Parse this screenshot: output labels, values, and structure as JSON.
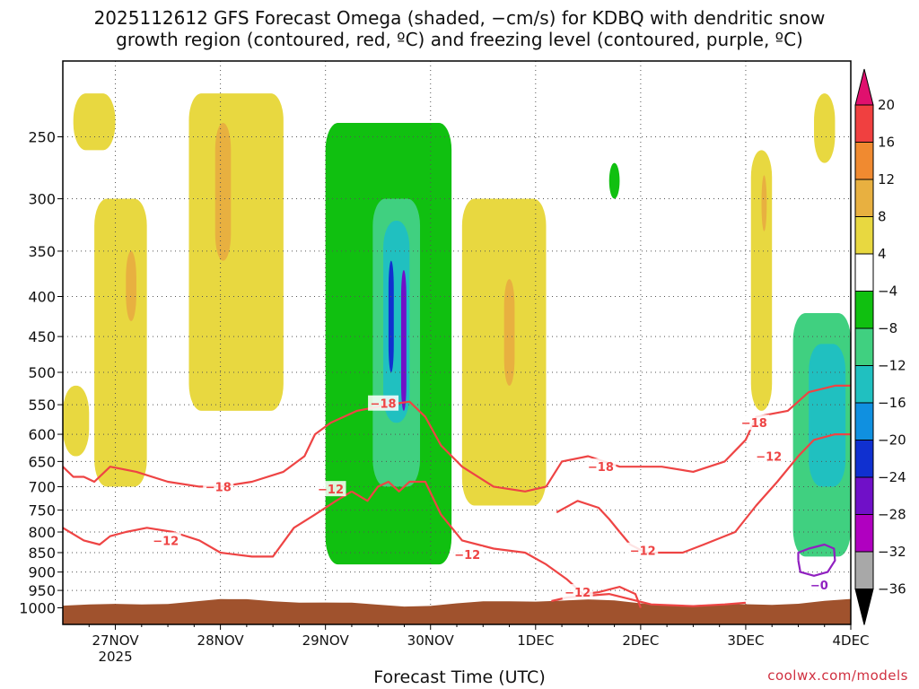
{
  "chart_data": {
    "type": "heatmap",
    "title_line1": "2025112612 GFS Forecast Omega (shaded, −cm/s) for KDBQ with dendritic snow",
    "title_line2": "growth region (contoured, red, ºC) and freezing level (contoured, purple, ºC)",
    "xlabel": "Forecast Time (UTC)",
    "x_ticks": [
      {
        "label": "27NOV",
        "sub": "2025",
        "day": 1
      },
      {
        "label": "28NOV",
        "sub": "",
        "day": 2
      },
      {
        "label": "29NOV",
        "sub": "",
        "day": 3
      },
      {
        "label": "30NOV",
        "sub": "",
        "day": 4
      },
      {
        "label": "1DEC",
        "sub": "",
        "day": 5
      },
      {
        "label": "2DEC",
        "sub": "",
        "day": 6
      },
      {
        "label": "3DEC",
        "sub": "",
        "day": 7
      },
      {
        "label": "4DEC",
        "sub": "",
        "day": 8
      }
    ],
    "x_range_days": [
      0.5,
      8.0
    ],
    "y_axis": "pressure (hPa), log scale, inverted",
    "y_range_hpa": [
      200,
      1050
    ],
    "y_ticks": [
      250,
      300,
      350,
      400,
      450,
      500,
      550,
      600,
      650,
      700,
      750,
      800,
      850,
      900,
      950,
      1000
    ],
    "colorbar": {
      "labels": [
        "20",
        "16",
        "12",
        "8",
        "4",
        "−4",
        "−8",
        "−12",
        "−16",
        "−20",
        "−24",
        "−28",
        "−32",
        "−36"
      ],
      "colors": [
        "#e0106e",
        "#f04040",
        "#f08a30",
        "#e8b040",
        "#e8d840",
        "#ffffff",
        "#10c010",
        "#40d080",
        "#20c0c0",
        "#1090e0",
        "#1030d0",
        "#7010c8",
        "#b000c0",
        "#a8a8a8",
        "#000000"
      ]
    },
    "omega_regions": [
      {
        "name": "lift-27nov",
        "value": 6,
        "day0": 0.5,
        "day1": 0.75,
        "p0": 520,
        "p1": 640
      },
      {
        "name": "lift-27nov-b",
        "value": 6,
        "day0": 0.6,
        "day1": 1.0,
        "p0": 220,
        "p1": 260
      },
      {
        "name": "lift-27nov-c",
        "value": 5,
        "day0": 0.8,
        "day1": 1.3,
        "p0": 300,
        "p1": 700
      },
      {
        "name": "lift-27nov-core",
        "value": 10,
        "day0": 1.1,
        "day1": 1.2,
        "p0": 350,
        "p1": 430
      },
      {
        "name": "lift-28nov",
        "value": 6,
        "day0": 1.7,
        "day1": 2.6,
        "p0": 220,
        "p1": 560
      },
      {
        "name": "lift-28nov-core",
        "value": 11,
        "day0": 1.95,
        "day1": 2.1,
        "p0": 240,
        "p1": 360
      },
      {
        "name": "sink-29nov",
        "value": -7,
        "day0": 3.0,
        "day1": 4.2,
        "p0": 240,
        "p1": 880
      },
      {
        "name": "sink-29nov-b",
        "value": -11,
        "day0": 3.45,
        "day1": 3.9,
        "p0": 300,
        "p1": 700
      },
      {
        "name": "sink-29nov-c",
        "value": -15,
        "day0": 3.55,
        "day1": 3.8,
        "p0": 320,
        "p1": 580
      },
      {
        "name": "sink-29nov-d",
        "value": -22,
        "day0": 3.6,
        "day1": 3.65,
        "p0": 360,
        "p1": 500
      },
      {
        "name": "sink-29nov-e",
        "value": -26,
        "day0": 3.72,
        "day1": 3.77,
        "p0": 370,
        "p1": 560
      },
      {
        "name": "lift-30nov",
        "value": 5,
        "day0": 4.3,
        "day1": 5.1,
        "p0": 300,
        "p1": 740
      },
      {
        "name": "lift-30nov-core",
        "value": 9,
        "day0": 4.7,
        "day1": 4.8,
        "p0": 380,
        "p1": 520
      },
      {
        "name": "sink-1dec",
        "value": -6,
        "day0": 5.7,
        "day1": 5.8,
        "p0": 270,
        "p1": 300
      },
      {
        "name": "lift-3dec",
        "value": 6,
        "day0": 7.05,
        "day1": 7.25,
        "p0": 260,
        "p1": 560
      },
      {
        "name": "lift-3dec-core",
        "value": 11,
        "day0": 7.15,
        "day1": 7.2,
        "p0": 280,
        "p1": 330
      },
      {
        "name": "lift-4dec-top",
        "value": 5,
        "day0": 7.65,
        "day1": 7.85,
        "p0": 220,
        "p1": 270
      },
      {
        "name": "sink-4dec",
        "value": -8,
        "day0": 7.45,
        "day1": 8.0,
        "p0": 420,
        "p1": 860
      },
      {
        "name": "sink-4dec-b",
        "value": -13,
        "day0": 7.6,
        "day1": 7.95,
        "p0": 460,
        "p1": 700
      }
    ],
    "contours": {
      "dgz_minus18_label": "−18",
      "dgz_minus12_label": "−12",
      "freezing_label": "−0",
      "minus18": [
        [
          0.5,
          660
        ],
        [
          0.6,
          680
        ],
        [
          0.7,
          680
        ],
        [
          0.8,
          690
        ],
        [
          0.95,
          660
        ],
        [
          1.2,
          670
        ],
        [
          1.5,
          690
        ],
        [
          1.8,
          700
        ],
        [
          2.0,
          700
        ],
        [
          2.3,
          690
        ],
        [
          2.6,
          670
        ],
        [
          2.8,
          640
        ],
        [
          2.9,
          600
        ],
        [
          3.05,
          580
        ],
        [
          3.3,
          560
        ],
        [
          3.6,
          550
        ],
        [
          3.8,
          545
        ],
        [
          3.95,
          570
        ],
        [
          4.1,
          620
        ],
        [
          4.3,
          660
        ],
        [
          4.6,
          700
        ],
        [
          4.9,
          710
        ],
        [
          5.1,
          700
        ],
        [
          5.25,
          650
        ],
        [
          5.5,
          640
        ],
        [
          5.8,
          660
        ],
        [
          6.2,
          660
        ],
        [
          6.5,
          670
        ],
        [
          6.8,
          650
        ],
        [
          7.0,
          610
        ],
        [
          7.1,
          570
        ],
        [
          7.4,
          560
        ],
        [
          7.6,
          530
        ],
        [
          7.85,
          520
        ],
        [
          8.0,
          520
        ]
      ],
      "minus12_a": [
        [
          0.5,
          790
        ],
        [
          0.7,
          820
        ],
        [
          0.85,
          830
        ],
        [
          0.95,
          810
        ],
        [
          1.1,
          800
        ],
        [
          1.3,
          790
        ],
        [
          1.55,
          800
        ],
        [
          1.8,
          820
        ],
        [
          2.0,
          850
        ],
        [
          2.3,
          860
        ],
        [
          2.5,
          860
        ],
        [
          2.7,
          790
        ],
        [
          2.9,
          760
        ],
        [
          3.1,
          730
        ],
        [
          3.25,
          710
        ]
      ],
      "minus12_b": [
        [
          3.25,
          710
        ],
        [
          3.4,
          730
        ],
        [
          3.5,
          700
        ],
        [
          3.6,
          690
        ],
        [
          3.7,
          710
        ],
        [
          3.8,
          690
        ],
        [
          3.95,
          690
        ],
        [
          4.1,
          760
        ],
        [
          4.3,
          820
        ],
        [
          4.6,
          840
        ],
        [
          4.9,
          850
        ],
        [
          5.1,
          880
        ],
        [
          5.3,
          920
        ],
        [
          5.45,
          960
        ],
        [
          5.6,
          955
        ],
        [
          5.8,
          940
        ],
        [
          5.95,
          960
        ],
        [
          6.0,
          1000
        ]
      ],
      "minus12_c": [
        [
          5.15,
          980
        ],
        [
          5.3,
          970
        ],
        [
          5.5,
          965
        ],
        [
          5.7,
          960
        ],
        [
          6.1,
          990
        ],
        [
          6.5,
          995
        ],
        [
          6.8,
          990
        ],
        [
          7.0,
          985
        ]
      ],
      "minus12_d": [
        [
          5.2,
          755
        ],
        [
          5.4,
          730
        ],
        [
          5.6,
          745
        ],
        [
          5.7,
          770
        ],
        [
          5.8,
          800
        ],
        [
          5.9,
          830
        ],
        [
          6.05,
          850
        ],
        [
          6.4,
          850
        ],
        [
          6.6,
          830
        ],
        [
          6.9,
          800
        ],
        [
          7.1,
          740
        ],
        [
          7.3,
          690
        ],
        [
          7.5,
          640
        ],
        [
          7.65,
          610
        ],
        [
          7.85,
          600
        ],
        [
          8.0,
          600
        ]
      ],
      "freezing": [
        [
          7.5,
          870
        ],
        [
          7.52,
          900
        ],
        [
          7.65,
          910
        ],
        [
          7.78,
          900
        ],
        [
          7.85,
          870
        ],
        [
          7.84,
          840
        ],
        [
          7.75,
          830
        ],
        [
          7.6,
          840
        ],
        [
          7.5,
          850
        ],
        [
          7.5,
          870
        ]
      ]
    },
    "terrain_hpa": 985
  },
  "credit": "coolwx.com/models"
}
